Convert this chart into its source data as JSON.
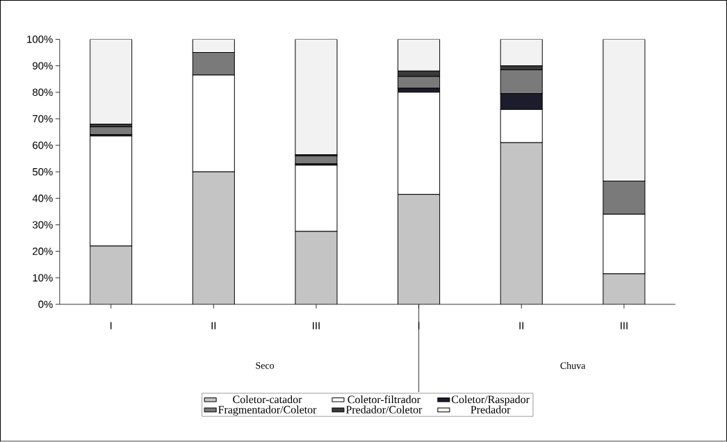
{
  "chart_data": {
    "type": "bar",
    "stacked": true,
    "categories": [
      "I",
      "II",
      "III",
      "I",
      "II",
      "III"
    ],
    "series": [
      {
        "name": "Coletor-catador",
        "color": "#c4c4c4",
        "values": [
          22,
          50,
          27.5,
          41.5,
          61,
          11.5
        ]
      },
      {
        "name": "Coletor-filtrador",
        "color": "#ffffff",
        "values": [
          41.5,
          36.5,
          25,
          38.5,
          12.5,
          22.5
        ]
      },
      {
        "name": "Coletor/Raspador",
        "color": "#1c1c2c",
        "values": [
          0.5,
          0,
          0.5,
          1.5,
          6,
          0
        ]
      },
      {
        "name": "Fragmentador/Coletor",
        "color": "#7a7a7a",
        "values": [
          3,
          8.5,
          3,
          4.5,
          9,
          12.5
        ]
      },
      {
        "name": "Predador/Coletor",
        "color": "#3a3a3a",
        "values": [
          1,
          0,
          0.5,
          2,
          1.5,
          0
        ]
      },
      {
        "name": "Predador",
        "color": "#f2f2f2",
        "values": [
          32,
          5,
          43.5,
          12,
          10,
          53.5
        ]
      }
    ],
    "ylim": [
      0,
      100
    ],
    "yticks": [
      {
        "value": 0,
        "label": "0%"
      },
      {
        "value": 10,
        "label": "10%"
      },
      {
        "value": 20,
        "label": "20%"
      },
      {
        "value": 30,
        "label": "30%"
      },
      {
        "value": 40,
        "label": "40%"
      },
      {
        "value": 50,
        "label": "50%"
      },
      {
        "value": 60,
        "label": "60%"
      },
      {
        "value": 70,
        "label": "70%"
      },
      {
        "value": 80,
        "label": "80%"
      },
      {
        "value": 90,
        "label": "90%"
      },
      {
        "value": 100,
        "label": "100%"
      }
    ],
    "annotations": [
      "Seco",
      "Chuva"
    ],
    "legend": "bottom",
    "grid": false
  }
}
